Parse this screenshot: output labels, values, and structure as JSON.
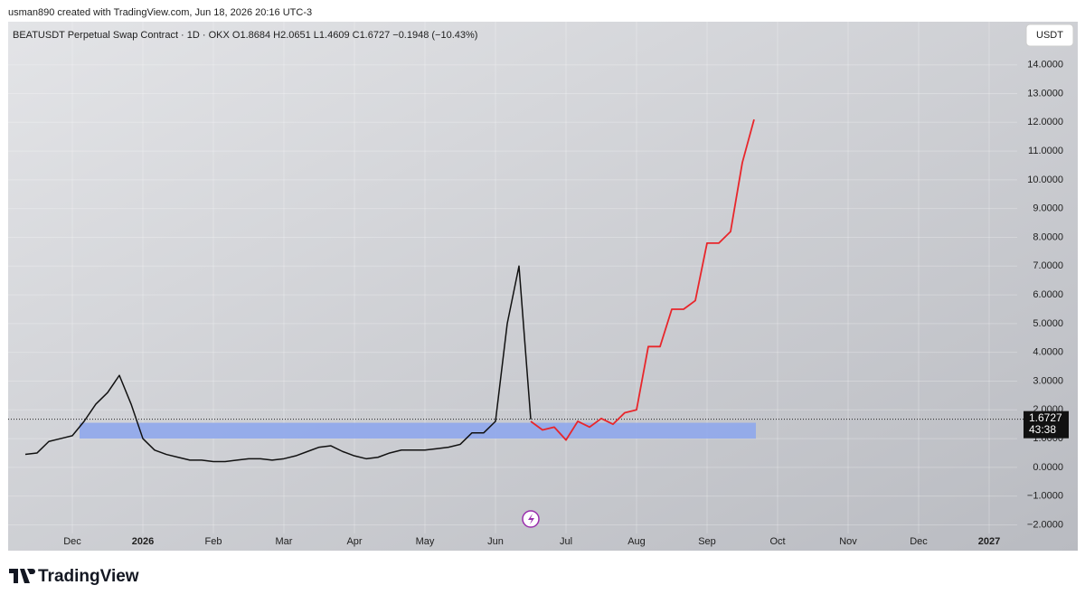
{
  "credit": "usman890 created with TradingView.com, Jun 18, 2026 20:16 UTC-3",
  "branding": "TradingView",
  "chart_data": {
    "type": "line",
    "title": "BEATUSDT Perpetual Swap Contract · 1D · OKX  O1.8684  H2.0651  L1.4609  C1.6727  −0.1948 (−10.43%)",
    "currency": "USDT",
    "last_price": 1.6727,
    "countdown": "43:38",
    "zone": [
      1.0,
      1.55
    ],
    "zone_color": "#8fa7ec",
    "categories": [
      null,
      null,
      null,
      null,
      "Dec",
      null,
      null,
      null,
      null,
      null,
      "2026",
      null,
      null,
      null,
      null,
      null,
      "Feb",
      null,
      null,
      null,
      null,
      null,
      "Mar",
      null,
      null,
      null,
      null,
      null,
      "Apr",
      null,
      null,
      null,
      null,
      null,
      "May",
      null,
      null,
      null,
      null,
      null,
      "Jun",
      null,
      null,
      null,
      null,
      null,
      "Jul",
      null,
      null,
      null,
      null,
      null,
      "Aug",
      null,
      null,
      null,
      null,
      null,
      "Sep",
      null,
      null,
      null,
      null,
      null,
      "Oct",
      null,
      null,
      null,
      null,
      null,
      "Nov",
      null,
      null,
      null,
      null,
      null,
      "Dec",
      null,
      null,
      null,
      null,
      null,
      "2027",
      null,
      null
    ],
    "series": [
      {
        "color": "#111111",
        "values": [
          0.45,
          0.5,
          0.9,
          1.0,
          1.1,
          1.6,
          2.2,
          2.6,
          3.2,
          2.2,
          1.0,
          0.6,
          0.45,
          0.35,
          0.25,
          0.25,
          0.2,
          0.2,
          0.25,
          0.3,
          0.3,
          0.25,
          0.3,
          0.4,
          0.55,
          0.7,
          0.75,
          0.55,
          0.4,
          0.3,
          0.35,
          0.5,
          0.6,
          0.6,
          0.6,
          0.65,
          0.7,
          0.8,
          1.2,
          1.2,
          1.6,
          5.0,
          7.0,
          1.67,
          null,
          null,
          null,
          null,
          null,
          null,
          null,
          null,
          null,
          null,
          null,
          null,
          null,
          null,
          null,
          null,
          null,
          null,
          null,
          null,
          null,
          null,
          null,
          null,
          null,
          null,
          null,
          null,
          null,
          null,
          null,
          null,
          null,
          null,
          null,
          null,
          null,
          null,
          null,
          null,
          null
        ]
      },
      {
        "color": "#e8262b",
        "values": [
          null,
          null,
          null,
          null,
          null,
          null,
          null,
          null,
          null,
          null,
          null,
          null,
          null,
          null,
          null,
          null,
          null,
          null,
          null,
          null,
          null,
          null,
          null,
          null,
          null,
          null,
          null,
          null,
          null,
          null,
          null,
          null,
          null,
          null,
          null,
          null,
          null,
          null,
          null,
          null,
          null,
          null,
          null,
          1.6,
          1.3,
          1.4,
          0.95,
          1.6,
          1.4,
          1.7,
          1.5,
          1.9,
          2.0,
          4.2,
          4.2,
          5.5,
          5.5,
          5.8,
          7.8,
          7.8,
          8.2,
          10.6,
          12.1,
          null,
          null,
          null,
          null,
          null,
          null,
          null,
          null,
          null,
          null,
          null,
          null,
          null,
          null,
          null,
          null,
          null,
          null,
          null,
          null,
          null,
          null
        ]
      }
    ],
    "ylim": [
      -2.3,
      15.5
    ],
    "yticks": [
      {
        "value": 14,
        "label": "14.0000"
      },
      {
        "value": 13,
        "label": "13.0000"
      },
      {
        "value": 12,
        "label": "12.0000"
      },
      {
        "value": 11,
        "label": "11.0000"
      },
      {
        "value": 10,
        "label": "10.0000"
      },
      {
        "value": 9,
        "label": "9.0000"
      },
      {
        "value": 8,
        "label": "8.0000"
      },
      {
        "value": 7,
        "label": "7.0000"
      },
      {
        "value": 6,
        "label": "6.0000"
      },
      {
        "value": 5,
        "label": "5.0000"
      },
      {
        "value": 4,
        "label": "4.0000"
      },
      {
        "value": 3,
        "label": "3.0000"
      },
      {
        "value": 2,
        "label": "2.0000"
      },
      {
        "value": 1,
        "label": "1.0000"
      },
      {
        "value": 0,
        "label": "0.0000"
      },
      {
        "value": -1,
        "label": "−1.0000"
      },
      {
        "value": -2,
        "label": "−2.0000"
      }
    ],
    "grid": true
  }
}
